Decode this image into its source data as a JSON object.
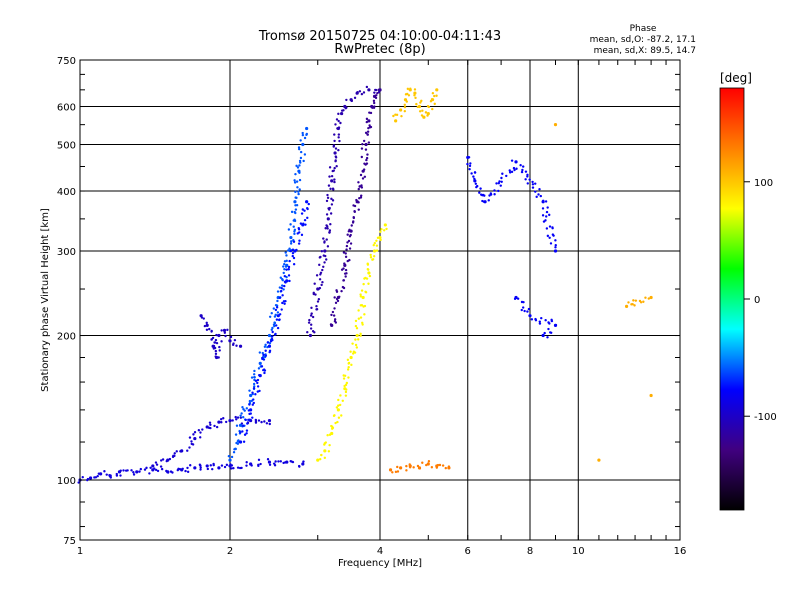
{
  "chart_data": {
    "type": "scatter",
    "title": "Tromsø 20150725 04:10:00-04:11:43",
    "subtitle": "RwPretec (8p)",
    "xlabel": "Frequency [MHz]",
    "ylabel": "Stationary phase Virtual Height [km]",
    "x_scale": "log",
    "y_scale": "log",
    "xlim": [
      1,
      16
    ],
    "ylim": [
      75,
      750
    ],
    "x_ticks": [
      1,
      2,
      4,
      6,
      8,
      10,
      16
    ],
    "y_ticks": [
      75,
      100,
      200,
      300,
      400,
      500,
      600,
      750
    ],
    "grid": true,
    "phase_box": {
      "title": "Phase",
      "line_o": "mean, sd,O: -87.2, 17.1",
      "line_x": "mean, sd,X:  89.5, 14.7"
    },
    "colorbar": {
      "label": "[deg]",
      "range": [
        -180,
        180
      ],
      "ticks": [
        100,
        0,
        -100
      ],
      "colors": [
        "#ff0000",
        "#ff8000",
        "#ffff00",
        "#00ff00",
        "#00ffff",
        "#0000ff",
        "#400080",
        "#000000"
      ]
    },
    "traces": [
      {
        "phase": -90,
        "points": [
          [
            1.0,
            100
          ],
          [
            1.05,
            101
          ],
          [
            1.1,
            103
          ],
          [
            1.15,
            102
          ],
          [
            1.2,
            104
          ],
          [
            1.3,
            104
          ],
          [
            1.4,
            105
          ],
          [
            1.5,
            104
          ],
          [
            1.6,
            105
          ],
          [
            1.7,
            106
          ],
          [
            1.8,
            107
          ],
          [
            1.9,
            106
          ],
          [
            2.0,
            107
          ],
          [
            2.2,
            108
          ],
          [
            2.4,
            109
          ],
          [
            2.6,
            109
          ],
          [
            2.8,
            108
          ]
        ]
      },
      {
        "phase": -95,
        "points": [
          [
            1.4,
            107
          ],
          [
            1.5,
            110
          ],
          [
            1.6,
            115
          ],
          [
            1.7,
            122
          ],
          [
            1.8,
            129
          ],
          [
            1.9,
            132
          ],
          [
            2.0,
            133
          ],
          [
            2.2,
            133
          ],
          [
            2.4,
            133
          ]
        ]
      },
      {
        "phase": -100,
        "points": [
          [
            1.75,
            220
          ],
          [
            1.8,
            210
          ],
          [
            1.85,
            190
          ],
          [
            1.88,
            180
          ],
          [
            1.9,
            200
          ],
          [
            1.95,
            205
          ],
          [
            2.0,
            195
          ],
          [
            2.1,
            190
          ]
        ]
      },
      {
        "phase": -60,
        "points": [
          [
            2.0,
            110
          ],
          [
            2.1,
            130
          ],
          [
            2.2,
            150
          ],
          [
            2.3,
            175
          ],
          [
            2.4,
            200
          ],
          [
            2.5,
            240
          ],
          [
            2.6,
            280
          ],
          [
            2.65,
            320
          ],
          [
            2.7,
            380
          ],
          [
            2.75,
            440
          ],
          [
            2.8,
            500
          ],
          [
            2.85,
            540
          ]
        ]
      },
      {
        "phase": -75,
        "points": [
          [
            2.1,
            120
          ],
          [
            2.2,
            140
          ],
          [
            2.3,
            165
          ],
          [
            2.4,
            190
          ],
          [
            2.5,
            220
          ],
          [
            2.6,
            260
          ],
          [
            2.7,
            300
          ],
          [
            2.8,
            340
          ],
          [
            2.85,
            380
          ]
        ]
      },
      {
        "phase": -110,
        "points": [
          [
            2.9,
            200
          ],
          [
            3.0,
            250
          ],
          [
            3.1,
            300
          ],
          [
            3.15,
            350
          ],
          [
            3.2,
            420
          ],
          [
            3.25,
            480
          ],
          [
            3.3,
            540
          ],
          [
            3.35,
            580
          ],
          [
            3.4,
            600
          ],
          [
            3.5,
            620
          ],
          [
            3.6,
            640
          ],
          [
            3.8,
            650
          ],
          [
            4.0,
            650
          ]
        ]
      },
      {
        "phase": -120,
        "points": [
          [
            3.2,
            210
          ],
          [
            3.3,
            240
          ],
          [
            3.4,
            280
          ],
          [
            3.5,
            330
          ],
          [
            3.6,
            380
          ],
          [
            3.7,
            440
          ],
          [
            3.75,
            500
          ],
          [
            3.8,
            560
          ],
          [
            3.85,
            600
          ],
          [
            3.9,
            630
          ],
          [
            4.0,
            650
          ]
        ]
      },
      {
        "phase": 80,
        "points": [
          [
            3.0,
            110
          ],
          [
            3.1,
            115
          ],
          [
            3.2,
            125
          ],
          [
            3.3,
            140
          ],
          [
            3.4,
            155
          ],
          [
            3.5,
            180
          ],
          [
            3.6,
            200
          ],
          [
            3.7,
            240
          ],
          [
            3.8,
            270
          ],
          [
            3.9,
            300
          ],
          [
            4.0,
            320
          ],
          [
            4.1,
            340
          ]
        ]
      },
      {
        "phase": 100,
        "points": [
          [
            4.3,
            560
          ],
          [
            4.4,
            590
          ],
          [
            4.5,
            620
          ],
          [
            4.6,
            650
          ],
          [
            4.7,
            640
          ],
          [
            4.8,
            600
          ],
          [
            4.9,
            570
          ],
          [
            5.0,
            580
          ],
          [
            5.1,
            620
          ],
          [
            5.2,
            650
          ]
        ]
      },
      {
        "phase": 130,
        "points": [
          [
            4.2,
            105
          ],
          [
            4.4,
            106
          ],
          [
            4.6,
            107
          ],
          [
            4.8,
            106
          ],
          [
            5.0,
            108
          ],
          [
            5.2,
            107
          ],
          [
            5.5,
            106
          ]
        ]
      },
      {
        "phase": -80,
        "points": [
          [
            6.0,
            470
          ],
          [
            6.2,
            420
          ],
          [
            6.5,
            380
          ],
          [
            7.5,
            460
          ],
          [
            8.5,
            380
          ],
          [
            9.0,
            300
          ],
          [
            7.5,
            240
          ],
          [
            8.0,
            220
          ],
          [
            9.0,
            210
          ],
          [
            8.5,
            200
          ]
        ]
      },
      {
        "phase": 110,
        "points": [
          [
            9.0,
            550
          ],
          [
            11.0,
            110
          ],
          [
            12.5,
            230
          ],
          [
            14.0,
            240
          ],
          [
            14.0,
            150
          ]
        ]
      }
    ]
  }
}
